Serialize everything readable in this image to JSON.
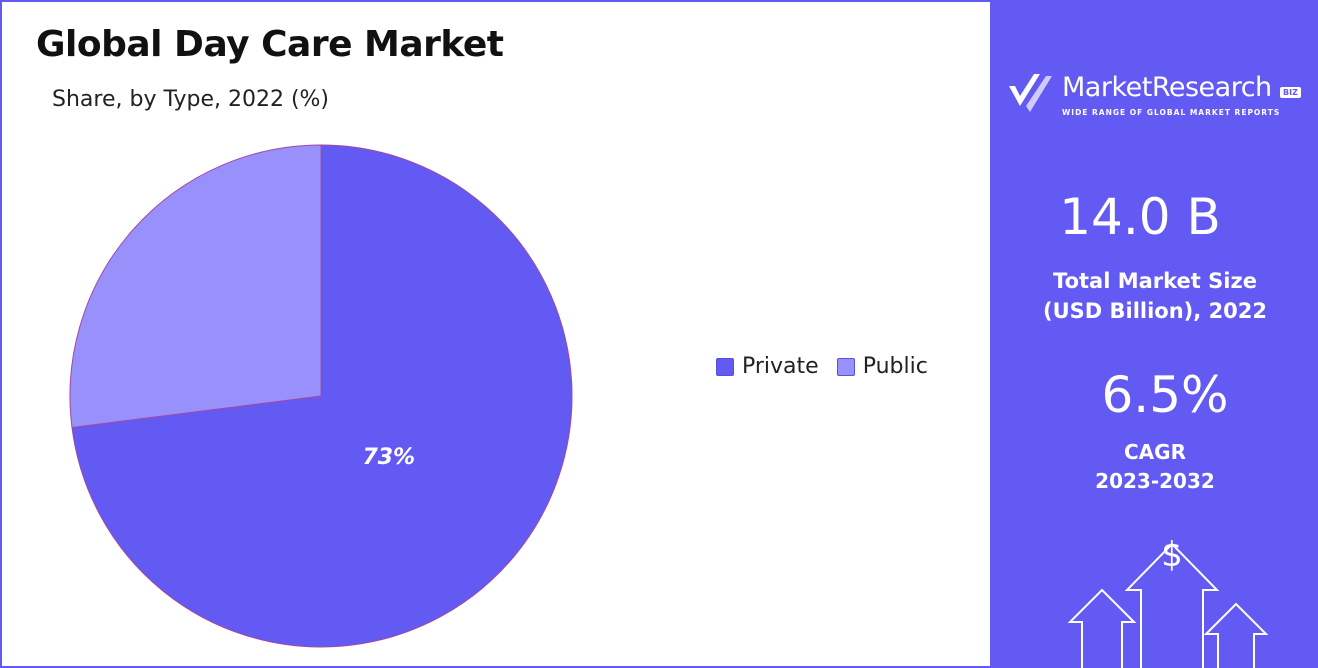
{
  "chart_data": {
    "type": "pie",
    "title": "Global Day Care Market",
    "subtitle": "Share, by Type, 2022 (%)",
    "categories": [
      "Private",
      "Public"
    ],
    "values": [
      73,
      27
    ],
    "data_labels": [
      "73%",
      ""
    ],
    "legend_position": "right",
    "colors": [
      "#6359f3",
      "#9891fc"
    ]
  },
  "sidebar": {
    "brand_name": "MarketResearch",
    "brand_badge": "BIZ",
    "brand_tagline": "WIDE RANGE OF GLOBAL MARKET REPORTS",
    "market_size_value": "14.0 B",
    "market_size_label_line1": "Total Market Size",
    "market_size_label_line2": "(USD Billion), 2022",
    "cagr_value": "6.5%",
    "cagr_label_line1": "CAGR",
    "cagr_label_line2": "2023-2032",
    "dollar_symbol": "$",
    "background_color": "#6359f3",
    "icons": [
      "brand-logo-icon",
      "growth-arrows-icon"
    ]
  }
}
